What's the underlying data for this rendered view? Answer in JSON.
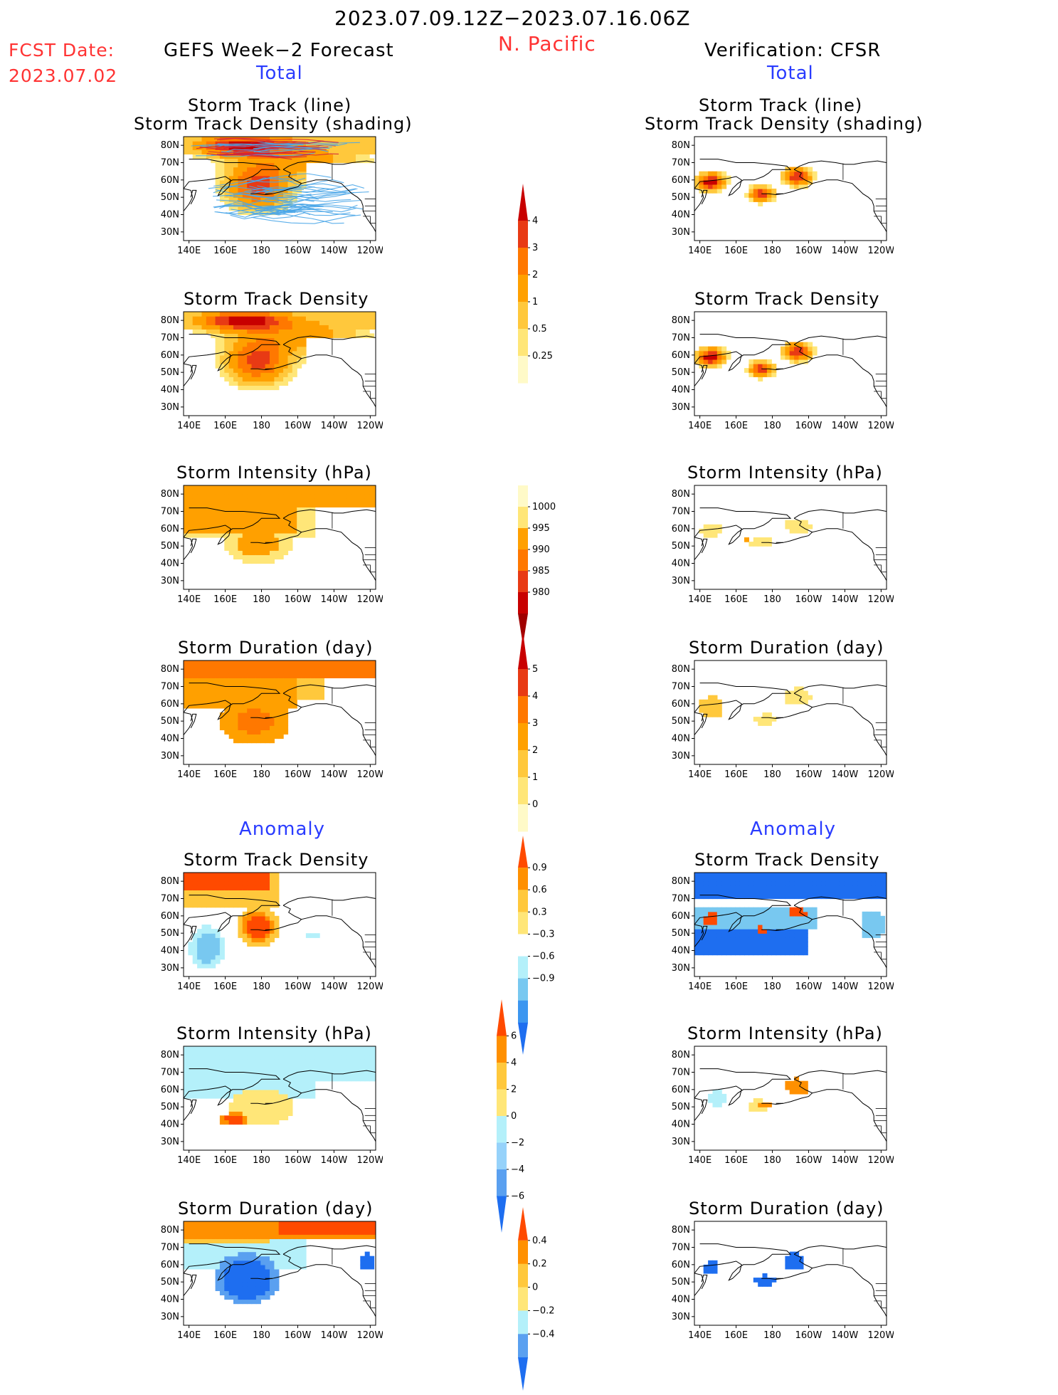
{
  "header": {
    "period": "2023.07.09.12Z−2023.07.16.06Z",
    "region": "N. Pacific",
    "fcst_label": "FCST Date:",
    "fcst_date": "2023.07.02",
    "left_model": "GEFS Week−2 Forecast",
    "right_model": "Verification: CFSR",
    "section_total": "Total",
    "section_anomaly": "Anomaly"
  },
  "axis_ticks": {
    "lat": [
      "80N",
      "70N",
      "60N",
      "50N",
      "40N",
      "30N"
    ],
    "lon": [
      "140E",
      "160E",
      "180",
      "160W",
      "140W",
      "120W"
    ]
  },
  "panels": {
    "row1_title_a": "Storm Track (line)",
    "row1_title_b": "Storm Track Density (shading)",
    "track_density": "Storm Track Density",
    "intensity": "Storm Intensity (hPa)",
    "duration": "Storm Duration (day)"
  },
  "chart_data": [
    {
      "type": "heatmap",
      "name": "GEFS Total Storm Track Density",
      "xlim": [
        "140E",
        "120W"
      ],
      "ylim": [
        "25N",
        "85N"
      ],
      "max_region": "80N 160E-180",
      "secondary_max": "58N 180"
    },
    {
      "type": "heatmap",
      "name": "CFSR Total Storm Track Density",
      "centers": [
        {
          "lat": 58,
          "lon": "145E"
        },
        {
          "lat": 52,
          "lon": "175E"
        },
        {
          "lat": 62,
          "lon": "165W"
        }
      ]
    },
    {
      "type": "heatmap",
      "name": "GEFS Total Storm Intensity (hPa)"
    },
    {
      "type": "heatmap",
      "name": "GEFS Total Storm Duration (day)"
    },
    {
      "type": "heatmap",
      "name": "GEFS Anomaly Storm Track Density"
    },
    {
      "type": "heatmap",
      "name": "CFSR Anomaly Storm Track Density"
    }
  ],
  "colorbars": {
    "density": {
      "labels": [
        "4",
        "3",
        "2",
        "1",
        "0.5",
        "0.25"
      ],
      "colors": [
        "#c80000",
        "#e83a14",
        "#ff7800",
        "#ffa000",
        "#ffc83c",
        "#ffe678",
        "#fffac8"
      ]
    },
    "intensity": {
      "labels": [
        "1000",
        "995",
        "990",
        "985",
        "980"
      ],
      "colors": [
        "#fffac8",
        "#ffe678",
        "#ffa000",
        "#ff7800",
        "#e83a14",
        "#c80000",
        "#a00000"
      ]
    },
    "duration": {
      "labels": [
        "5",
        "4",
        "3",
        "2",
        "1",
        "0"
      ],
      "colors": [
        "#c80000",
        "#e83a14",
        "#ff7800",
        "#ffa000",
        "#ffc83c",
        "#ffe678",
        "#fffac8"
      ]
    },
    "anom_density": {
      "labels": [
        "0.9",
        "0.6",
        "0.3",
        "−0.3",
        "−0.6",
        "−0.9"
      ],
      "colors": [
        "#ff4a00",
        "#ff9000",
        "#ffc83c",
        "#ffe678",
        "#ffffff",
        "#b4f0fa",
        "#78c8f0",
        "#3c96f0",
        "#1e6ef0"
      ]
    },
    "anom_intensity": {
      "labels": [
        "6",
        "4",
        "2",
        "0",
        "−2",
        "−4",
        "−6"
      ],
      "colors": [
        "#ff4a00",
        "#ff9000",
        "#ffc83c",
        "#ffe678",
        "#b4f0fa",
        "#96d2fa",
        "#5aa0f0",
        "#1e6ef0"
      ]
    },
    "anom_duration": {
      "labels": [
        "0.4",
        "0.2",
        "0",
        "−0.2",
        "−0.4"
      ],
      "colors": [
        "#ff4a00",
        "#ff9000",
        "#ffc83c",
        "#ffe678",
        "#b4f0fa",
        "#5aa0f0",
        "#1e6ef0"
      ]
    }
  }
}
